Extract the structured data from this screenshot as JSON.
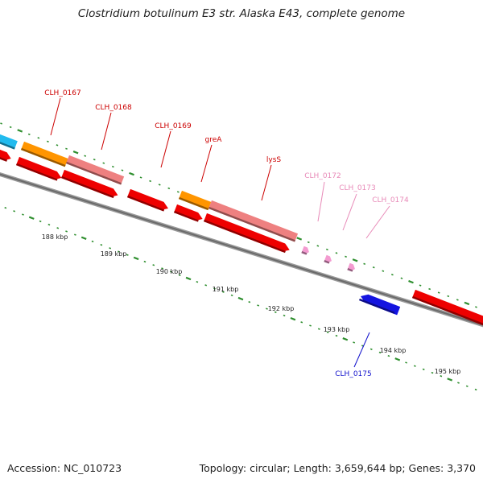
{
  "title": "Clostridium botulinum E3 str. Alaska E43, complete genome",
  "footer": {
    "accession": "Accession: NC_010723",
    "topology": "Topology: circular; Length: 3,659,644 bp; Genes: 3,370"
  },
  "colors": {
    "backbone": "#777777",
    "tick": "#2f8f2f",
    "gene_red": "#ee0000",
    "gene_pink": "#ee8080",
    "gene_orange": "#ff9500",
    "gene_lightpink": "#f39bd0",
    "gene_blue": "#1414e0",
    "gene_cyan": "#22bbee",
    "label_red": "#cc0000",
    "label_pink": "#e88ab8",
    "label_blue": "#1010cc"
  },
  "kbp_labels": [
    "188 kbp",
    "189 kbp",
    "190 kbp",
    "191 kbp",
    "192 kbp",
    "193 kbp",
    "194 kbp",
    "195 kbp"
  ],
  "gene_labels": [
    {
      "name": "CLH_0167",
      "color": "red"
    },
    {
      "name": "CLH_0168",
      "color": "red"
    },
    {
      "name": "CLH_0169",
      "color": "red"
    },
    {
      "name": "greA",
      "color": "red"
    },
    {
      "name": "lysS",
      "color": "red"
    },
    {
      "name": "CLH_0172",
      "color": "pink"
    },
    {
      "name": "CLH_0173",
      "color": "pink"
    },
    {
      "name": "CLH_0174",
      "color": "pink"
    },
    {
      "name": "CLH_0175",
      "color": "blue"
    }
  ]
}
